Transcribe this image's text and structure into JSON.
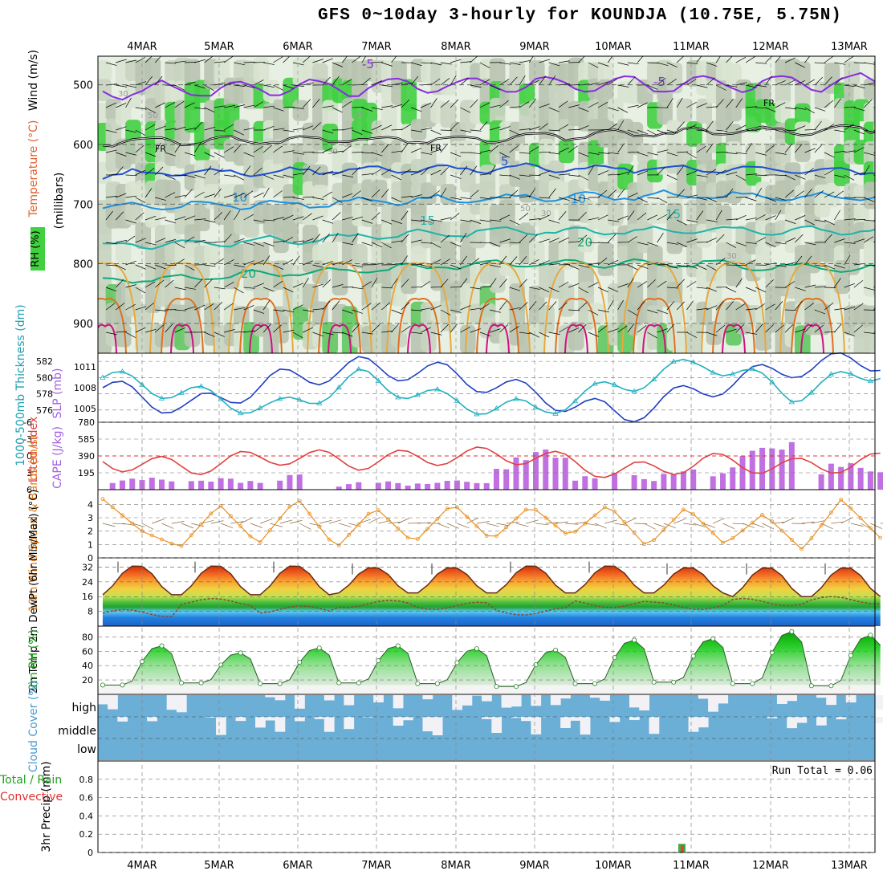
{
  "title": "GFS 0~10day 3-hourly for KOUNDJA (10.75E, 5.75N)",
  "chart_data": {
    "type": "meteogram",
    "dates": [
      "4MAR",
      "5MAR",
      "6MAR",
      "7MAR",
      "8MAR",
      "9MAR",
      "10MAR",
      "11MAR",
      "12MAR",
      "13MAR"
    ],
    "panels": {
      "profile": {
        "ylabel_wind": "Wind (m/s)",
        "ylabel_temp": "Temperature (°C)",
        "ylabel_rh": "RH (%)",
        "ylabel_unit": "(millibars)",
        "pressure_ticks": [
          500,
          600,
          700,
          800,
          900
        ],
        "ylim": [
          450,
          950
        ],
        "isotherm_labels": [
          "-5",
          "FR",
          "5",
          "10",
          "15",
          "20"
        ],
        "rh_labels": [
          "30",
          "50"
        ],
        "isotherms": [
          {
            "label": "-5",
            "color": "#8a2be2",
            "levels": [
              510,
              505,
              500,
              498,
              495
            ]
          },
          {
            "label": "FR",
            "color": "#000000",
            "levels": [
              595,
              593,
              590,
              580,
              575
            ]
          },
          {
            "label": "5",
            "color": "#1f4fd0",
            "levels": [
              650,
              645,
              640,
              640,
              645
            ]
          },
          {
            "label": "10",
            "color": "#1e90e0",
            "levels": [
              705,
              700,
              690,
              685,
              690
            ]
          },
          {
            "label": "15",
            "color": "#20b2aa",
            "levels": [
              770,
              760,
              745,
              745,
              745
            ]
          },
          {
            "label": "20",
            "color": "#10a878",
            "levels": [
              830,
              815,
              800,
              800,
              810
            ]
          }
        ]
      },
      "thickness_slp": {
        "ylabel_thk": "1000-500mb Thickness (dm)",
        "ylabel_slp": "SLP (mb)",
        "thk_ticks": [
          576,
          578,
          580,
          582
        ],
        "slp_ticks": [
          1005,
          1008,
          1011
        ],
        "slp_series": [
          1008,
          1005,
          1009,
          1011,
          1010,
          1007,
          1004,
          1008,
          1011,
          1012
        ],
        "thk_series": [
          580,
          578,
          576,
          580,
          577,
          576,
          579,
          582,
          578,
          581
        ]
      },
      "stability": {
        "ylabel_li": "Lifted Index",
        "ylabel_cape": "CAPE (J/kg)",
        "li_ticks": [
          "-6",
          "-3",
          "0",
          "3",
          "6"
        ],
        "cape_ticks": [
          "195",
          "390",
          "585",
          "780"
        ],
        "cape_max_day_values": [
          180,
          150,
          190,
          120,
          130,
          560,
          220,
          300,
          650,
          370
        ],
        "li_typical": [
          1,
          2,
          0,
          1,
          0,
          0,
          3,
          1,
          2,
          1
        ]
      },
      "wind10m": {
        "ylabel": "10m Wind Speed & Barbs (m/s)",
        "ticks": [
          "0",
          "1",
          "2",
          "3",
          "4"
        ],
        "ylim": [
          0,
          5
        ],
        "speed_series": [
          4.4,
          2.0,
          0.8,
          4.0,
          1.0,
          4.5,
          0.7,
          3.8,
          1.1,
          4.1,
          1.3,
          3.9,
          1.6,
          4.0,
          0.8,
          3.8,
          1.0,
          3.3,
          0.6,
          4.4,
          1.5
        ]
      },
      "temp2m": {
        "ylabel": "2m Temp 2m DewPt (6hr Min/Max) (°C)",
        "ticks": [
          "8",
          "16",
          "24",
          "32"
        ],
        "ylim": [
          0,
          36
        ],
        "max_temps": [
          33,
          33,
          33,
          32,
          32,
          33,
          33,
          32,
          32,
          32
        ],
        "min_temps": [
          17,
          17,
          17,
          18,
          18,
          18,
          18,
          18,
          16,
          16
        ],
        "dewpt": [
          7,
          13,
          9,
          12,
          11,
          8,
          12,
          11,
          13,
          14
        ]
      },
      "rh2m": {
        "ylabel": "2m RH (%)",
        "ticks": [
          "20",
          "40",
          "60",
          "80"
        ],
        "ylim": [
          0,
          95
        ],
        "daily_max": [
          68,
          58,
          65,
          68,
          64,
          62,
          76,
          78,
          88,
          83
        ],
        "daily_min": [
          13,
          16,
          15,
          16,
          15,
          11,
          15,
          17,
          15,
          12
        ]
      },
      "cloud": {
        "ylabel": "Cloud Cover (%)",
        "layers": [
          "high",
          "middle",
          "low"
        ],
        "color": "#6baed6"
      },
      "precip": {
        "ylabel": "3hr Precip (mm)",
        "legend_total": "Total / Rain",
        "legend_conv": "Convective",
        "ticks": [
          "0",
          "0.2",
          "0.4",
          "0.6",
          "0.8"
        ],
        "ylim": [
          0,
          1.0
        ],
        "run_total": "Run Total = 0.06",
        "events": [
          {
            "date": "11MAR",
            "value": 0.06
          }
        ]
      }
    }
  }
}
